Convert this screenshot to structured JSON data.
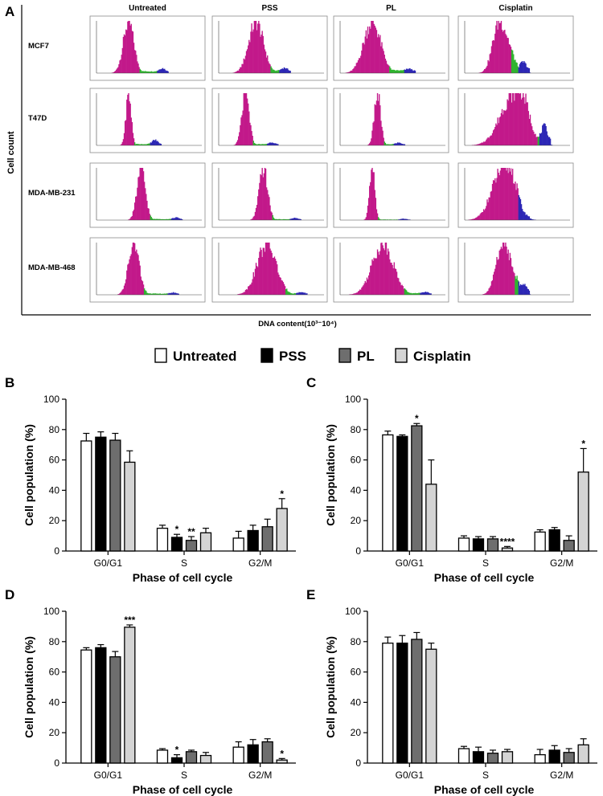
{
  "figure": {
    "panel_labels": {
      "A": "A",
      "B": "B",
      "C": "C",
      "D": "D",
      "E": "E"
    }
  },
  "panel_a": {
    "y_label": "Cell count",
    "x_label": "DNA content(10³⁻10⁴)",
    "columns": [
      "Untreated",
      "PSS",
      "PL",
      "Cisplatin"
    ],
    "rows": [
      "MCF7",
      "T47D",
      "MDA-MB-231",
      "MDA-MB-468"
    ],
    "histogram_colors": {
      "g1": "#c2198a",
      "s": "#2fb32f",
      "g2m": "#2c27b5",
      "outline": "#111111"
    }
  },
  "legend": {
    "items": [
      {
        "label": "Untreated",
        "color": "#ffffff"
      },
      {
        "label": "PSS",
        "color": "#000000"
      },
      {
        "label": "PL",
        "color": "#6e6e6e"
      },
      {
        "label": "Cisplatin",
        "color": "#d4d4d4"
      }
    ]
  },
  "chart_data": [
    {
      "type": "bar",
      "panel": "B",
      "categories": [
        "G0/G1",
        "S",
        "G2/M"
      ],
      "xlabel": "Phase of cell cycle",
      "ylabel": "Cell population  (%)",
      "ylim": [
        0,
        100
      ],
      "yticks": [
        "0",
        "20",
        "40",
        "60",
        "80",
        "100"
      ],
      "series": [
        {
          "name": "Untreated",
          "values": [
            72.5,
            15,
            8.5
          ],
          "errors": [
            5,
            2,
            4.5
          ],
          "sig": [
            "",
            "",
            ""
          ]
        },
        {
          "name": "PSS",
          "values": [
            75,
            9,
            13.5
          ],
          "errors": [
            3.5,
            2,
            3.5
          ],
          "sig": [
            "",
            "*",
            ""
          ]
        },
        {
          "name": "PL",
          "values": [
            73,
            7,
            16
          ],
          "errors": [
            4.5,
            2.5,
            5
          ],
          "sig": [
            "",
            "**",
            ""
          ]
        },
        {
          "name": "Cisplatin",
          "values": [
            58.5,
            12,
            28
          ],
          "errors": [
            7.5,
            3,
            6.5
          ],
          "sig": [
            "",
            "",
            "*"
          ]
        }
      ]
    },
    {
      "type": "bar",
      "panel": "C",
      "categories": [
        "G0/G1",
        "S",
        "G2/M"
      ],
      "xlabel": "Phase of cell cycle",
      "ylabel": "Cell population  (%)",
      "ylim": [
        0,
        100
      ],
      "yticks": [
        "0",
        "20",
        "40",
        "60",
        "80",
        "100"
      ],
      "series": [
        {
          "name": "Untreated",
          "values": [
            76.5,
            8.5,
            12.5
          ],
          "errors": [
            2.5,
            1.5,
            1.5
          ],
          "sig": [
            "",
            "",
            ""
          ]
        },
        {
          "name": "PSS",
          "values": [
            75.5,
            8,
            14
          ],
          "errors": [
            1,
            1.5,
            1.5
          ],
          "sig": [
            "",
            "",
            ""
          ]
        },
        {
          "name": "PL",
          "values": [
            82.5,
            8,
            7
          ],
          "errors": [
            1.5,
            1.5,
            3
          ],
          "sig": [
            "*",
            "",
            ""
          ]
        },
        {
          "name": "Cisplatin",
          "values": [
            44,
            2,
            52
          ],
          "errors": [
            16,
            1,
            15.5
          ],
          "sig": [
            "",
            "****",
            "*"
          ]
        }
      ]
    },
    {
      "type": "bar",
      "panel": "D",
      "categories": [
        "G0/G1",
        "S",
        "G2/M"
      ],
      "xlabel": "Phase of cell cycle",
      "ylabel": "Cell population  (%)",
      "ylim": [
        0,
        100
      ],
      "yticks": [
        "0",
        "20",
        "40",
        "60",
        "80",
        "100"
      ],
      "series": [
        {
          "name": "Untreated",
          "values": [
            74.5,
            8.5,
            10.5
          ],
          "errors": [
            1.5,
            1,
            3.5
          ],
          "sig": [
            "",
            "",
            ""
          ]
        },
        {
          "name": "PSS",
          "values": [
            76,
            3.5,
            12
          ],
          "errors": [
            2,
            2,
            3.5
          ],
          "sig": [
            "",
            "*",
            ""
          ]
        },
        {
          "name": "PL",
          "values": [
            70,
            7.5,
            14
          ],
          "errors": [
            3.5,
            1,
            2
          ],
          "sig": [
            "",
            "",
            ""
          ]
        },
        {
          "name": "Cisplatin",
          "values": [
            89.5,
            5,
            2
          ],
          "errors": [
            1.5,
            2,
            1
          ],
          "sig": [
            "***",
            "",
            "*"
          ]
        }
      ]
    },
    {
      "type": "bar",
      "panel": "E",
      "categories": [
        "G0/G1",
        "S",
        "G2/M"
      ],
      "xlabel": "Phase of cell cycle",
      "ylabel": "Cell population  (%)",
      "ylim": [
        0,
        100
      ],
      "yticks": [
        "0",
        "20",
        "40",
        "60",
        "80",
        "100"
      ],
      "series": [
        {
          "name": "Untreated",
          "values": [
            79,
            9.5,
            5.5
          ],
          "errors": [
            4,
            1.5,
            3.5
          ],
          "sig": [
            "",
            "",
            ""
          ]
        },
        {
          "name": "PSS",
          "values": [
            79,
            7.5,
            8.5
          ],
          "errors": [
            5,
            3,
            3
          ],
          "sig": [
            "",
            "",
            ""
          ]
        },
        {
          "name": "PL",
          "values": [
            81.5,
            6.5,
            7
          ],
          "errors": [
            4.5,
            2,
            2.5
          ],
          "sig": [
            "",
            "",
            ""
          ]
        },
        {
          "name": "Cisplatin",
          "values": [
            75,
            7.5,
            12
          ],
          "errors": [
            4,
            1.5,
            4
          ],
          "sig": [
            "",
            "",
            ""
          ]
        }
      ]
    }
  ]
}
